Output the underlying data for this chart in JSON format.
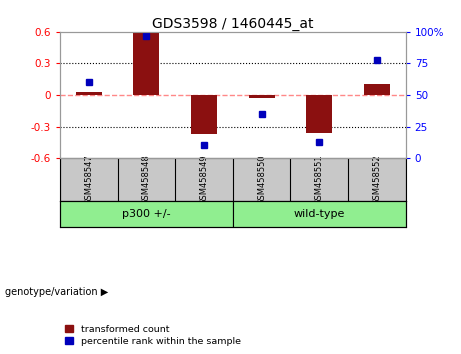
{
  "title": "GDS3598 / 1460445_at",
  "samples": [
    "GSM458547",
    "GSM458548",
    "GSM458549",
    "GSM458550",
    "GSM458551",
    "GSM458552"
  ],
  "bar_values": [
    0.03,
    0.6,
    -0.37,
    -0.03,
    -0.36,
    0.1
  ],
  "dot_pct": [
    60,
    97,
    10,
    35,
    13,
    78
  ],
  "groups_def": [
    {
      "label": "p300 +/-",
      "start": 0,
      "end": 2,
      "color": "#90EE90"
    },
    {
      "label": "wild-type",
      "start": 3,
      "end": 5,
      "color": "#90EE90"
    }
  ],
  "ylim": [
    -0.6,
    0.6
  ],
  "y2lim": [
    0,
    100
  ],
  "yticks": [
    -0.6,
    -0.3,
    0.0,
    0.3,
    0.6
  ],
  "y2ticks": [
    0,
    25,
    50,
    75,
    100
  ],
  "bar_color": "#8B1010",
  "dot_color": "#0000BB",
  "zero_line_color": "#FF8888",
  "grid_color": "#000000",
  "background_color": "#FFFFFF",
  "tick_area_color": "#C8C8C8",
  "legend_red_label": "transformed count",
  "legend_blue_label": "percentile rank within the sample",
  "genotype_label": "genotype/variation",
  "title_fontsize": 10,
  "axis_fontsize": 7.5,
  "label_fontsize": 7
}
